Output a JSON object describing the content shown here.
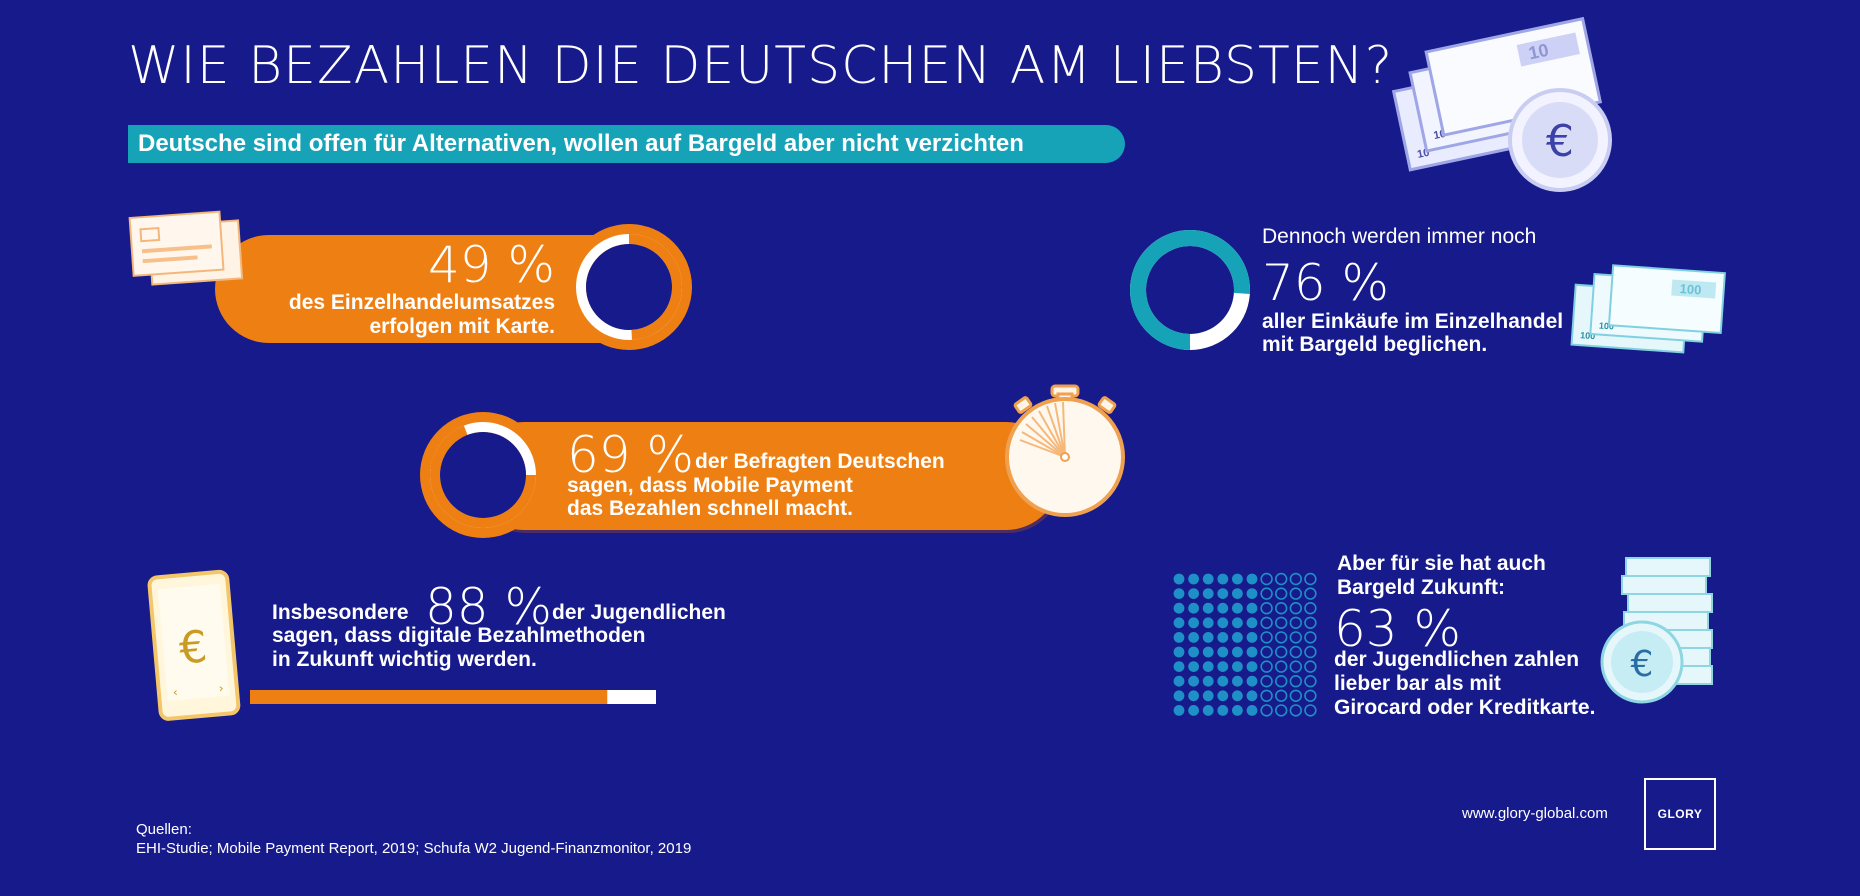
{
  "title": "WIE BEZAHLEN DIE DEUTSCHEN AM LIEBSTEN?",
  "subtitle": "Deutsche sind offen für Alternativen, wollen auf Bargeld aber nicht verzichten",
  "stat_card": {
    "percent": "49 %",
    "line1": "des Einzelhandelumsatzes",
    "line2": "erfolgen mit Karte.",
    "value": 49
  },
  "stat_cash": {
    "intro": "Dennoch werden immer noch",
    "percent": "76 %",
    "line1": "aller Einkäufe im Einzelhandel",
    "line2": "mit Bargeld beglichen.",
    "value": 76
  },
  "stat_mobile": {
    "percent": "69 %",
    "line1": "der Befragten Deutschen",
    "line2": "sagen, dass Mobile Payment",
    "line3": "das Bezahlen schnell macht.",
    "value": 69
  },
  "stat_youth_digital": {
    "prefix": "Insbesondere",
    "percent": "88 %",
    "suffix": "der Jugendlichen",
    "line2": "sagen, dass digitale Bezahlmethoden",
    "line3": "in Zukunft wichtig werden.",
    "value": 88
  },
  "stat_youth_cash": {
    "intro1": "Aber für sie hat auch",
    "intro2": "Bargeld Zukunft:",
    "percent": "63 %",
    "line1": "der Jugendlichen zahlen",
    "line2": "lieber bar als mit",
    "line3": "Girocard oder Kreditkarte.",
    "value": 63
  },
  "icons": {
    "banknote_10_big": "10",
    "banknote_10_small": "10",
    "banknote_10_small2": "10",
    "banknote_100_big": "100",
    "banknote_100_small": "100",
    "banknote_100_small2": "100",
    "euro": "€"
  },
  "footer": {
    "sources_label": "Quellen:",
    "sources": "EHI-Studie; Mobile Payment Report, 2019; Schufa W2 Jugend-Finanzmonitor, 2019",
    "url": "www.glory-global.com",
    "logo": "GLORY"
  },
  "colors": {
    "background": "#161a8a",
    "orange": "#ee7f12",
    "teal": "#16a3b8",
    "white": "#ffffff"
  }
}
